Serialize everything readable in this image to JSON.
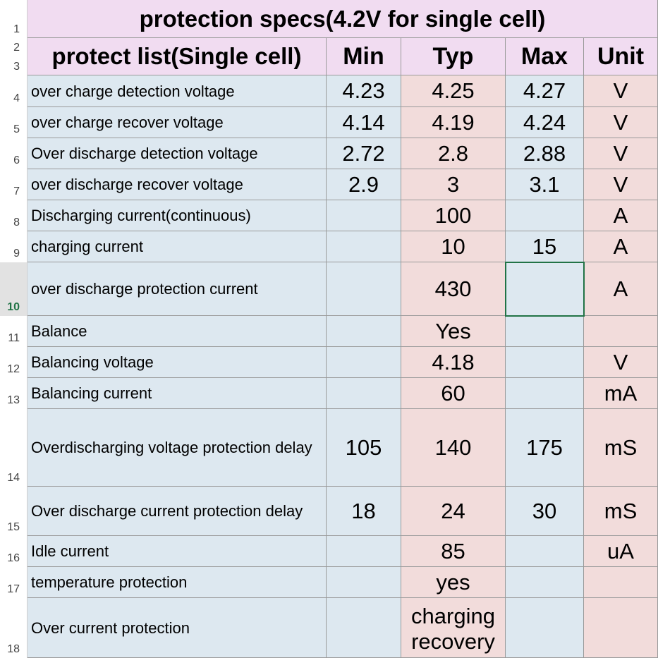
{
  "title": "protection specs(4.2V for single cell)",
  "row_numbers": [
    "1",
    "2",
    "3",
    "4",
    "5",
    "6",
    "7",
    "8",
    "9",
    "10",
    "11",
    "12",
    "13",
    "14",
    "15",
    "16",
    "17",
    "18"
  ],
  "headers": {
    "item": "protect list(Single cell)",
    "min": "Min",
    "typ": "Typ",
    "max": "Max",
    "unit": "Unit"
  },
  "rows": [
    {
      "name": "over charge  detection voltage",
      "min": "4.23",
      "typ": "4.25",
      "max": "4.27",
      "unit": "V"
    },
    {
      "name": "over charge  recover voltage",
      "min": "4.14",
      "typ": "4.19",
      "max": "4.24",
      "unit": "V"
    },
    {
      "name": "Over discharge detection voltage",
      "min": "2.72",
      "typ": "2.8",
      "max": "2.88",
      "unit": "V"
    },
    {
      "name": "over discharge recover voltage",
      "min": "2.9",
      "typ": "3",
      "max": "3.1",
      "unit": "V"
    },
    {
      "name": "Discharging current(continuous)",
      "min": "",
      "typ": "100",
      "max": "",
      "unit": "A"
    },
    {
      "name": "charging current",
      "min": "",
      "typ": "10",
      "max": "15",
      "unit": "A"
    },
    {
      "name": " over discharge protection current",
      "min": "",
      "typ": "430",
      "max": "",
      "unit": "A"
    },
    {
      "name": "Balance",
      "min": "",
      "typ": "Yes",
      "max": "",
      "unit": ""
    },
    {
      "name": "Balancing voltage",
      "min": "",
      "typ": "4.18",
      "max": "",
      "unit": "V"
    },
    {
      "name": "Balancing current",
      "min": "",
      "typ": "60",
      "max": "",
      "unit": "mA"
    },
    {
      "name": "Overdischarging voltage protection delay",
      "min": "105",
      "typ": "140",
      "max": "175",
      "unit": "mS"
    },
    {
      "name": "Over discharge current protection delay",
      "min": "18",
      "typ": "24",
      "max": "30",
      "unit": "mS"
    },
    {
      "name": "Idle current",
      "min": "",
      "typ": "85",
      "max": "",
      "unit": "uA"
    },
    {
      "name": "temperature protection",
      "min": "",
      "typ": "yes",
      "max": "",
      "unit": ""
    },
    {
      "name": "Over current protection",
      "min": "",
      "typ": "charging recovery",
      "max": "",
      "unit": ""
    }
  ],
  "colors": {
    "header_fill": "#f1dcf1",
    "blue_fill": "#dde8f0",
    "pink_fill": "#f2dcdb",
    "selection": "#217346"
  }
}
